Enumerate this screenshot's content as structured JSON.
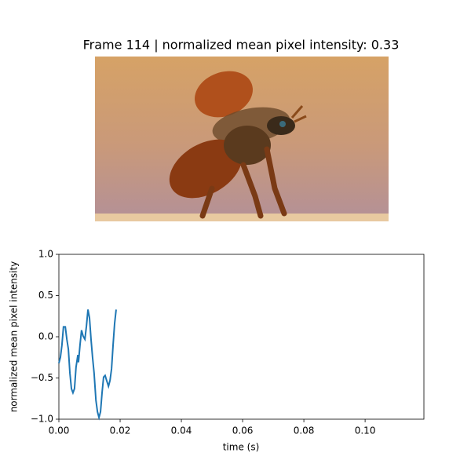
{
  "title": "Frame 114 | normalized mean pixel intensity: 0.33",
  "chart_data": {
    "type": "line",
    "xlabel": "time (s)",
    "ylabel": "normalized mean pixel intensity",
    "x": [
      0,
      0.0005,
      0.001,
      0.0015,
      0.0021,
      0.0026,
      0.0031,
      0.0036,
      0.0041,
      0.0046,
      0.0051,
      0.0056,
      0.0062,
      0.0064,
      0.0069,
      0.0074,
      0.0079,
      0.0085,
      0.009,
      0.0095,
      0.01,
      0.0105,
      0.011,
      0.0115,
      0.0121,
      0.0126,
      0.0131,
      0.0136,
      0.0141,
      0.0146,
      0.0151,
      0.0156,
      0.0162,
      0.0167,
      0.0172,
      0.0177,
      0.0182,
      0.0187
    ],
    "values": [
      -0.32,
      -0.25,
      -0.1,
      0.12,
      0.12,
      -0.03,
      -0.15,
      -0.44,
      -0.63,
      -0.68,
      -0.63,
      -0.37,
      -0.22,
      -0.31,
      -0.1,
      0.08,
      0.01,
      -0.03,
      0.13,
      0.33,
      0.23,
      -0.03,
      -0.25,
      -0.44,
      -0.77,
      -0.91,
      -0.98,
      -0.91,
      -0.68,
      -0.49,
      -0.47,
      -0.53,
      -0.6,
      -0.53,
      -0.39,
      -0.1,
      0.16,
      0.33
    ],
    "color": "#1f77b4",
    "xlim": [
      0,
      0.1192
    ],
    "ylim": [
      -1,
      1
    ],
    "xticks": [
      {
        "value": 0,
        "label": "0.00"
      },
      {
        "value": 0.02,
        "label": "0.02"
      },
      {
        "value": 0.04,
        "label": "0.04"
      },
      {
        "value": 0.06,
        "label": "0.06"
      },
      {
        "value": 0.08,
        "label": "0.08"
      },
      {
        "value": 0.1,
        "label": "0.10"
      }
    ],
    "yticks": [
      {
        "value": -1,
        "label": "−1.0"
      },
      {
        "value": -0.5,
        "label": "−0.5"
      },
      {
        "value": 0,
        "label": "0.0"
      },
      {
        "value": 0.5,
        "label": "0.5"
      },
      {
        "value": 1,
        "label": "1.0"
      }
    ]
  }
}
